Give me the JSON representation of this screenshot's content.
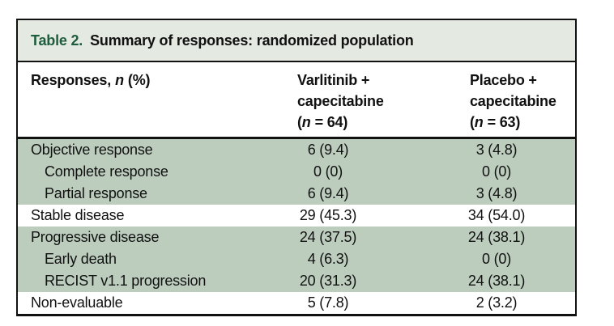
{
  "table": {
    "title": {
      "label": "Table 2.",
      "text": "Summary of responses: randomized population"
    },
    "header": {
      "col1": {
        "pre": "Responses,",
        "n": "n",
        "post": "(%)"
      },
      "col2": {
        "line1": "Varlitinib +",
        "line2": "capecitabine",
        "n_open": "(",
        "n": "n",
        "n_rest": "= 64)"
      },
      "col3": {
        "line1": "Placebo +",
        "line2": "capecitabine",
        "n_open": "(",
        "n": "n",
        "n_rest": "= 63)"
      }
    },
    "rows": [
      {
        "label": "Objective response",
        "varlitinib": "6 (9.4)",
        "placebo": "3 (4.8)"
      },
      {
        "label": "Complete response",
        "varlitinib": "0 (0)",
        "placebo": "0 (0)"
      },
      {
        "label": "Partial response",
        "varlitinib": "6 (9.4)",
        "placebo": "3 (4.8)"
      },
      {
        "label": "Stable disease",
        "varlitinib": "29 (45.3)",
        "placebo": "34 (54.0)"
      },
      {
        "label": "Progressive disease",
        "varlitinib": "24 (37.5)",
        "placebo": "24 (38.1)"
      },
      {
        "label": "Early death",
        "varlitinib": "4 (6.3)",
        "placebo": "0 (0)"
      },
      {
        "label": "RECIST v1.1 progression",
        "varlitinib": "20 (31.3)",
        "placebo": "24 (38.1)"
      },
      {
        "label": "Non-evaluable",
        "varlitinib": "5 (7.8)",
        "placebo": "2 (3.2)"
      }
    ],
    "colors": {
      "row_shaded": "#bccdbe",
      "title_bg": "#e4e9e2",
      "title_accent": "#1e5c3d",
      "border": "#111111"
    }
  }
}
